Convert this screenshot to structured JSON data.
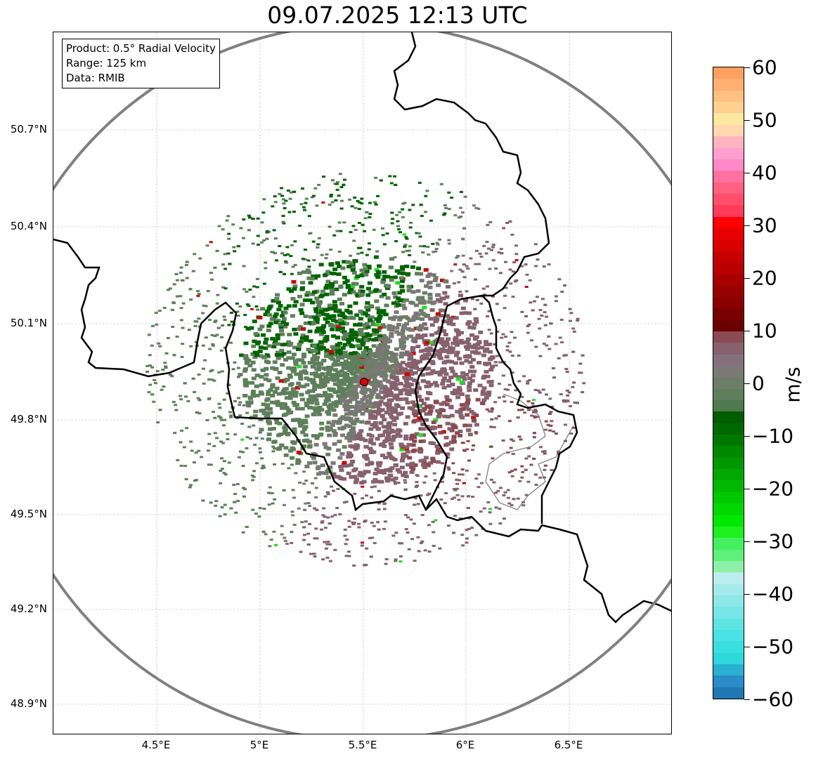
{
  "title": "09.07.2025 12:13 UTC",
  "info": {
    "product": "Product: 0.5° Radial Velocity",
    "range": "Range: 125 km",
    "data": "Data: RMIB"
  },
  "lat_ticks": [
    "50.7°N",
    "50.4°N",
    "50.1°N",
    "49.8°N",
    "49.5°N",
    "49.2°N",
    "48.9°N"
  ],
  "lon_ticks": [
    "4.5°E",
    "5°E",
    "5.5°E",
    "6°E",
    "6.5°E"
  ],
  "colorbar": {
    "label": "m/s",
    "ticks": [
      "60",
      "50",
      "40",
      "30",
      "20",
      "10",
      "0",
      "−10",
      "−20",
      "−30",
      "−40",
      "−50",
      "−60"
    ],
    "colors": [
      "#1f77b4",
      "#2a8cc8",
      "#2ab0d0",
      "#2dd8dc",
      "#3adede",
      "#4ae2e2",
      "#5fe4e4",
      "#76e6e6",
      "#8ee8e8",
      "#a4eaea",
      "#bbeeee",
      "#8ef0a8",
      "#5df07a",
      "#45f060",
      "#1ef020",
      "#00e800",
      "#00d800",
      "#00c800",
      "#00b800",
      "#00a800",
      "#009800",
      "#008800",
      "#007800",
      "#006800",
      "#005c00",
      "#4f7a50",
      "#5f7f5c",
      "#6d7d68",
      "#7d7878",
      "#86707c",
      "#86626e",
      "#8a4a52",
      "#6b0000",
      "#7a0000",
      "#8a0000",
      "#990000",
      "#a80000",
      "#b80000",
      "#c80000",
      "#d80000",
      "#e80000",
      "#ff0000",
      "#ff3b5a",
      "#ff4f6a",
      "#ff6080",
      "#ff70a0",
      "#ff88c8",
      "#ffa0d0",
      "#ffb4c0",
      "#ffd8b0",
      "#ffe8a0",
      "#ffd090",
      "#ffc080",
      "#ffb070",
      "#ffa060"
    ]
  },
  "radar_site": {
    "lon": 5.5,
    "lat": 49.915,
    "color": "#e00000"
  }
}
